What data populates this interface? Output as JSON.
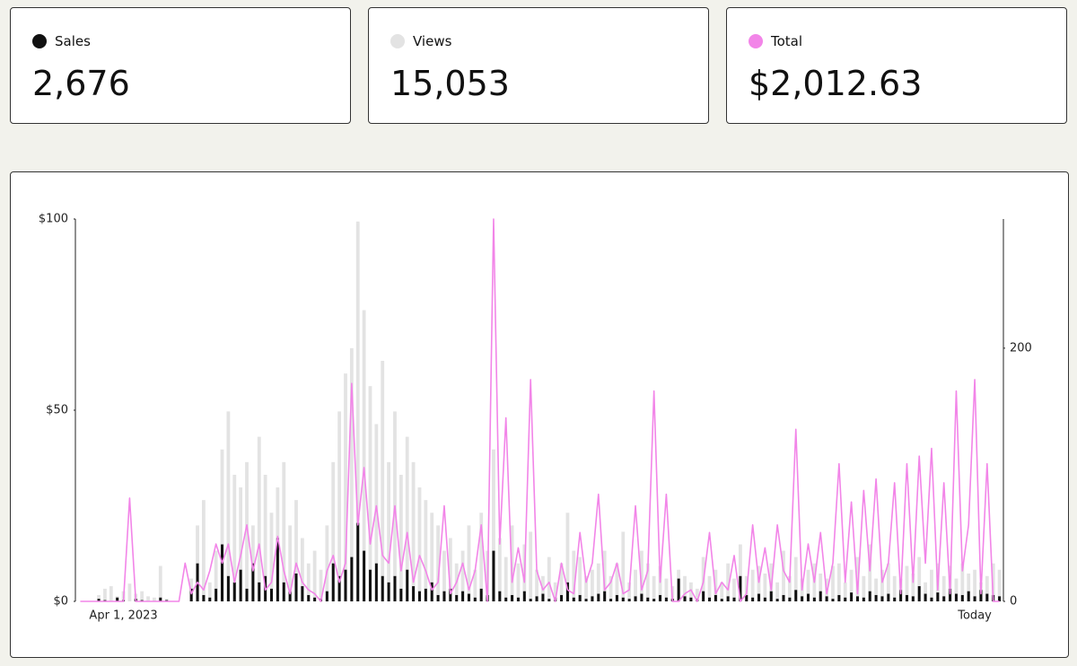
{
  "summary": [
    "2,676",
    "15,053",
    "$2,012.63"
  ],
  "chart_data": {
    "type": "bar-line",
    "categories": [
      null,
      null,
      null,
      null,
      null,
      null,
      null,
      "Apr 1, 2023",
      null,
      null,
      null,
      null,
      null,
      null,
      null,
      null,
      null,
      null,
      null,
      null,
      null,
      null,
      null,
      null,
      null,
      null,
      null,
      null,
      null,
      null,
      null,
      null,
      null,
      null,
      null,
      null,
      null,
      null,
      null,
      null,
      null,
      null,
      null,
      null,
      null,
      null,
      null,
      null,
      null,
      null,
      null,
      null,
      null,
      null,
      null,
      null,
      null,
      null,
      null,
      null,
      null,
      null,
      null,
      null,
      null,
      null,
      null,
      null,
      null,
      null,
      null,
      null,
      null,
      null,
      null,
      null,
      null,
      null,
      null,
      null,
      null,
      null,
      null,
      null,
      null,
      null,
      null,
      null,
      null,
      null,
      null,
      null,
      null,
      null,
      null,
      null,
      null,
      null,
      null,
      null,
      null,
      null,
      null,
      null,
      null,
      null,
      null,
      null,
      null,
      null,
      null,
      null,
      null,
      null,
      null,
      null,
      null,
      null,
      null,
      null,
      null,
      null,
      null,
      null,
      null,
      null,
      null,
      null,
      null,
      null,
      null,
      null,
      null,
      null,
      null,
      null,
      null,
      null,
      null,
      null,
      null,
      null,
      null,
      null,
      null,
      "Today",
      null,
      null,
      null,
      null
    ],
    "series": [
      {
        "name": "Sales",
        "color": "#111111",
        "axis": "y2",
        "kind": "bar",
        "values": [
          0,
          0,
          0,
          2,
          1,
          0,
          3,
          1,
          0,
          2,
          1,
          0,
          0,
          3,
          1,
          0,
          0,
          0,
          10,
          30,
          5,
          3,
          10,
          45,
          20,
          15,
          25,
          10,
          30,
          15,
          20,
          10,
          50,
          15,
          8,
          22,
          12,
          5,
          3,
          2,
          8,
          30,
          20,
          25,
          35,
          62,
          40,
          25,
          30,
          20,
          15,
          20,
          10,
          25,
          12,
          8,
          10,
          15,
          5,
          8,
          10,
          5,
          8,
          6,
          3,
          10,
          5,
          40,
          8,
          3,
          5,
          3,
          8,
          2,
          4,
          6,
          2,
          3,
          5,
          15,
          3,
          5,
          2,
          4,
          6,
          8,
          2,
          5,
          3,
          2,
          4,
          6,
          3,
          2,
          5,
          3,
          2,
          18,
          4,
          3,
          2,
          8,
          3,
          5,
          2,
          4,
          3,
          20,
          5,
          3,
          6,
          3,
          8,
          2,
          5,
          3,
          9,
          4,
          6,
          3,
          8,
          4,
          2,
          5,
          3,
          7,
          4,
          3,
          8,
          5,
          4,
          6,
          3,
          9,
          5,
          4,
          12,
          6,
          3,
          7,
          4,
          10,
          6,
          5,
          8,
          4,
          9,
          6,
          5,
          4
        ]
      },
      {
        "name": "Views",
        "color": "#e3e3e3",
        "axis": "y2",
        "kind": "bar",
        "values": [
          0,
          0,
          0,
          5,
          10,
          12,
          4,
          8,
          14,
          6,
          8,
          4,
          3,
          28,
          2,
          0,
          0,
          0,
          18,
          60,
          80,
          15,
          40,
          120,
          150,
          100,
          90,
          110,
          60,
          130,
          100,
          70,
          90,
          110,
          60,
          80,
          50,
          30,
          40,
          25,
          60,
          110,
          150,
          180,
          200,
          300,
          230,
          170,
          140,
          190,
          110,
          150,
          100,
          130,
          110,
          90,
          80,
          70,
          60,
          40,
          50,
          30,
          40,
          60,
          25,
          70,
          40,
          120,
          50,
          35,
          60,
          30,
          45,
          55,
          25,
          20,
          35,
          15,
          30,
          70,
          40,
          35,
          20,
          25,
          30,
          40,
          20,
          30,
          55,
          15,
          25,
          40,
          30,
          20,
          28,
          18,
          12,
          25,
          20,
          15,
          10,
          35,
          20,
          25,
          15,
          30,
          18,
          45,
          20,
          25,
          28,
          22,
          30,
          15,
          40,
          20,
          35,
          18,
          25,
          30,
          22,
          18,
          28,
          30,
          15,
          25,
          35,
          20,
          45,
          18,
          25,
          30,
          20,
          18,
          28,
          22,
          35,
          15,
          25,
          30,
          20,
          28,
          18,
          30,
          22,
          25,
          15,
          20,
          30,
          25
        ]
      },
      {
        "name": "Total",
        "color": "#f285e8",
        "axis": "y",
        "kind": "line",
        "values": [
          0,
          0,
          0,
          0,
          0,
          0,
          0,
          0,
          27,
          0,
          0,
          0,
          0,
          0,
          0,
          0,
          0,
          10,
          2,
          5,
          3,
          8,
          15,
          10,
          15,
          5,
          12,
          20,
          8,
          15,
          3,
          5,
          17,
          8,
          2,
          10,
          5,
          3,
          2,
          0,
          8,
          12,
          5,
          10,
          57,
          20,
          35,
          15,
          25,
          12,
          10,
          25,
          8,
          18,
          5,
          12,
          8,
          3,
          5,
          25,
          2,
          5,
          10,
          3,
          8,
          20,
          0,
          100,
          15,
          48,
          5,
          14,
          5,
          58,
          8,
          3,
          5,
          0,
          10,
          3,
          2,
          18,
          5,
          10,
          28,
          3,
          5,
          10,
          2,
          3,
          25,
          3,
          8,
          55,
          5,
          28,
          0,
          0,
          2,
          3,
          0,
          5,
          18,
          2,
          5,
          3,
          12,
          0,
          2,
          20,
          5,
          14,
          3,
          20,
          8,
          5,
          45,
          3,
          15,
          5,
          18,
          2,
          10,
          36,
          5,
          26,
          2,
          29,
          8,
          32,
          5,
          10,
          31,
          2,
          36,
          5,
          38,
          10,
          40,
          3,
          31,
          2,
          55,
          8,
          20,
          58,
          2,
          36,
          0,
          0
        ]
      }
    ],
    "ylim": [
      0,
      100
    ],
    "yticks": [
      {
        "value": 0,
        "label": "$0"
      },
      {
        "value": 50,
        "label": "$50"
      },
      {
        "value": 100,
        "label": "$100"
      }
    ],
    "y2lim": [
      0,
      302
    ],
    "y2ticks": [
      0,
      200
    ]
  }
}
